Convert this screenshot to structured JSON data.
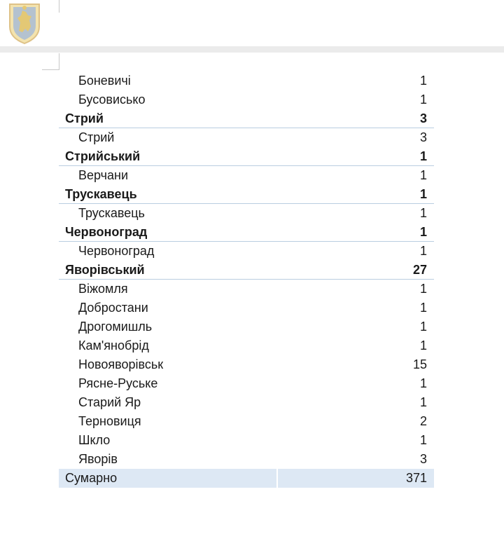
{
  "rows": [
    {
      "kind": "settlement",
      "name": "Боневичі",
      "value": "1"
    },
    {
      "kind": "settlement",
      "name": "Бусовисько",
      "value": "1"
    },
    {
      "kind": "district",
      "name": "Стрий",
      "value": "3"
    },
    {
      "kind": "settlement",
      "name": "Стрий",
      "value": "3"
    },
    {
      "kind": "district",
      "name": "Стрийський",
      "value": "1"
    },
    {
      "kind": "settlement",
      "name": "Верчани",
      "value": "1"
    },
    {
      "kind": "district",
      "name": "Трускавець",
      "value": "1"
    },
    {
      "kind": "settlement",
      "name": "Трускавець",
      "value": "1"
    },
    {
      "kind": "district",
      "name": "Червоноград",
      "value": "1"
    },
    {
      "kind": "settlement",
      "name": "Червоноград",
      "value": "1"
    },
    {
      "kind": "district",
      "name": "Яворівський",
      "value": "27"
    },
    {
      "kind": "settlement",
      "name": "Віжомля",
      "value": "1"
    },
    {
      "kind": "settlement",
      "name": "Добростани",
      "value": "1"
    },
    {
      "kind": "settlement",
      "name": "Дрогомишль",
      "value": "1"
    },
    {
      "kind": "settlement",
      "name": "Кам'янобрід",
      "value": "1"
    },
    {
      "kind": "settlement",
      "name": "Новояворівськ",
      "value": "15"
    },
    {
      "kind": "settlement",
      "name": "Рясне-Руське",
      "value": "1"
    },
    {
      "kind": "settlement",
      "name": "Старий Яр",
      "value": "1"
    },
    {
      "kind": "settlement",
      "name": "Терновиця",
      "value": "2"
    },
    {
      "kind": "settlement",
      "name": "Шкло",
      "value": "1"
    },
    {
      "kind": "settlement",
      "name": "Яворів",
      "value": "3"
    }
  ],
  "total": {
    "label": "Сумарно",
    "value": "371"
  },
  "colors": {
    "total_row_bg": "#dde8f4",
    "district_rule": "#b9cde0",
    "band": "#ebebeb"
  },
  "icons": {
    "header_logo": "lviv-oblast-coat-of-arms-icon"
  }
}
